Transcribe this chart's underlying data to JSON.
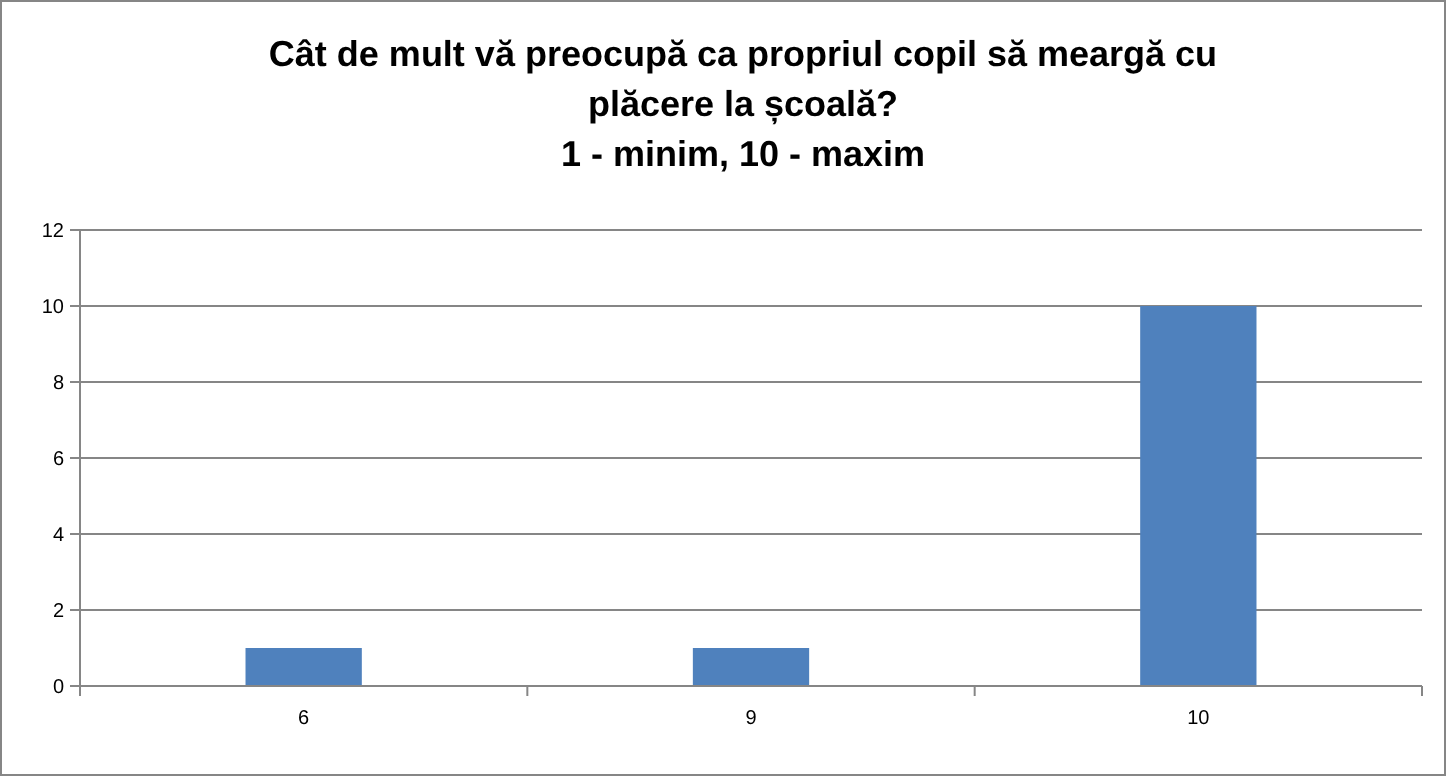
{
  "chart_data": {
    "type": "bar",
    "title": "Cât de mult vă preocupă ca propriul copil să meargă cu plăcere la școală?",
    "subtitle": "1 - minim, 10 - maxim",
    "categories": [
      "6",
      "9",
      "10"
    ],
    "values": [
      1,
      1,
      10
    ],
    "color": "#4f81bd",
    "ylim": [
      0,
      12
    ],
    "yticks": [
      0,
      2,
      4,
      6,
      8,
      10,
      12
    ],
    "grid": "y"
  }
}
